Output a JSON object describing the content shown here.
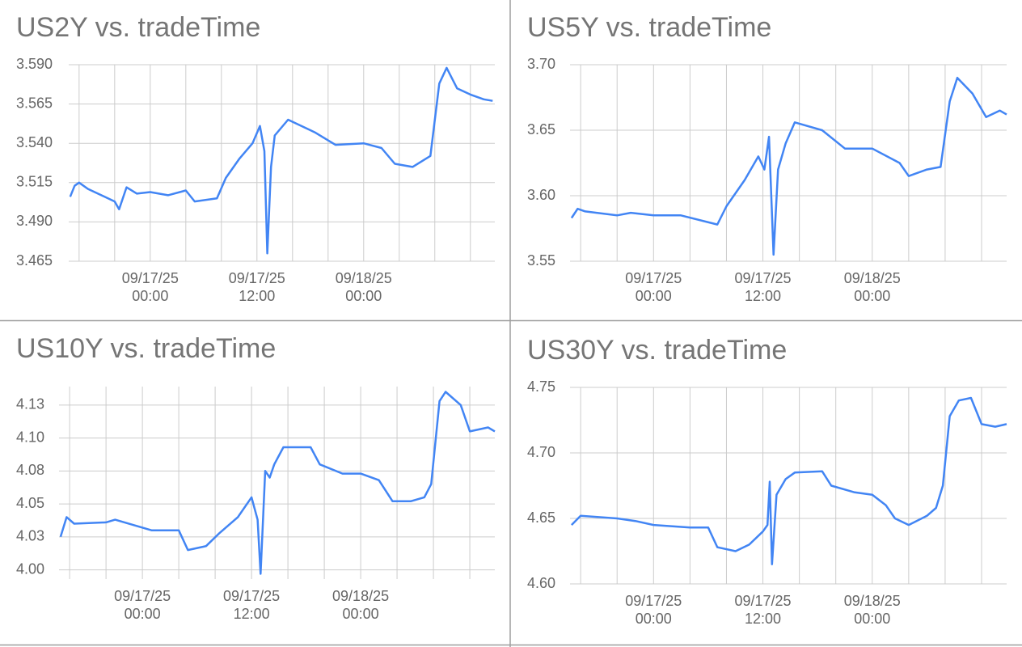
{
  "chart_data": [
    {
      "type": "line",
      "title": "US2Y vs. tradeTime",
      "color": "#4285f4",
      "grid": true,
      "xlim": [
        "09/16/25 14:50",
        "09/18/25 14:45"
      ],
      "xticks": [
        {
          "value": "09/16/25 16:00",
          "label": null
        },
        {
          "value": "09/16/25 20:00",
          "label": null
        },
        "09/17/25 00:00",
        {
          "value": "09/17/25 04:00",
          "label": null
        },
        {
          "value": "09/17/25 08:00",
          "label": null
        },
        "09/17/25 12:00",
        {
          "value": "09/17/25 16:00",
          "label": null
        },
        {
          "value": "09/17/25 20:00",
          "label": null
        },
        "09/18/25 00:00",
        {
          "value": "09/18/25 04:00",
          "label": null
        },
        {
          "value": "09/18/25 08:00",
          "label": null
        },
        {
          "value": "09/18/25 12:00",
          "label": null
        }
      ],
      "ylim": [
        3.465,
        3.59
      ],
      "yticks": [
        3.465,
        {
          "value": 3.49,
          "label": "3.490"
        },
        3.515,
        {
          "value": 3.54,
          "label": "3.540"
        },
        3.565,
        {
          "value": 3.59,
          "label": "3.590"
        }
      ],
      "x": [
        "09/16/25 15:00",
        "09/16/25 15:30",
        "09/16/25 16:00",
        "09/16/25 17:00",
        "09/16/25 20:00",
        "09/16/25 20:30",
        "09/16/25 21:20",
        "09/16/25 22:30",
        "09/17/25 00:00",
        "09/17/25 02:00",
        "09/17/25 04:00",
        "09/17/25 05:00",
        "09/17/25 07:30",
        "09/17/25 08:30",
        "09/17/25 10:00",
        "09/17/25 11:30",
        "09/17/25 12:20",
        "09/17/25 12:50",
        "09/17/25 13:10",
        "09/17/25 13:35",
        "09/17/25 14:00",
        "09/17/25 15:30",
        "09/17/25 18:30",
        "09/17/25 20:50",
        "09/18/25 00:00",
        "09/18/25 02:00",
        "09/18/25 03:30",
        "09/18/25 05:30",
        "09/18/25 07:30",
        "09/18/25 08:30",
        "09/18/25 09:20",
        "09/18/25 10:30",
        "09/18/25 12:00",
        "09/18/25 13:30",
        "09/18/25 14:30"
      ],
      "values": [
        3.506,
        3.513,
        3.515,
        3.511,
        3.503,
        3.498,
        3.512,
        3.508,
        3.509,
        3.507,
        3.51,
        3.503,
        3.505,
        3.518,
        3.53,
        3.54,
        3.551,
        3.535,
        3.47,
        3.525,
        3.545,
        3.555,
        3.547,
        3.539,
        3.54,
        3.537,
        3.527,
        3.525,
        3.532,
        3.578,
        3.588,
        3.575,
        3.571,
        3.568,
        3.567
      ]
    },
    {
      "type": "line",
      "title": "US5Y vs. tradeTime",
      "color": "#4285f4",
      "grid": true,
      "xlim": [
        "09/16/25 14:50",
        "09/18/25 14:45"
      ],
      "xticks": [
        {
          "value": "09/16/25 16:00",
          "label": null
        },
        {
          "value": "09/16/25 20:00",
          "label": null
        },
        "09/17/25 00:00",
        {
          "value": "09/17/25 04:00",
          "label": null
        },
        {
          "value": "09/17/25 08:00",
          "label": null
        },
        "09/17/25 12:00",
        {
          "value": "09/17/25 16:00",
          "label": null
        },
        {
          "value": "09/17/25 20:00",
          "label": null
        },
        "09/18/25 00:00",
        {
          "value": "09/18/25 04:00",
          "label": null
        },
        {
          "value": "09/18/25 08:00",
          "label": null
        },
        {
          "value": "09/18/25 12:00",
          "label": null
        }
      ],
      "ylim": [
        3.55,
        3.7
      ],
      "yticks": [
        3.55,
        {
          "value": 3.6,
          "label": "3.60"
        },
        3.65,
        {
          "value": 3.7,
          "label": "3.70"
        }
      ],
      "x": [
        "09/16/25 15:00",
        "09/16/25 15:40",
        "09/16/25 16:30",
        "09/16/25 20:00",
        "09/16/25 21:30",
        "09/17/25 00:00",
        "09/17/25 03:00",
        "09/17/25 07:00",
        "09/17/25 08:00",
        "09/17/25 10:00",
        "09/17/25 11:30",
        "09/17/25 12:10",
        "09/17/25 12:40",
        "09/17/25 13:10",
        "09/17/25 13:40",
        "09/17/25 14:30",
        "09/17/25 15:30",
        "09/17/25 18:30",
        "09/17/25 21:00",
        "09/18/25 00:00",
        "09/18/25 03:00",
        "09/18/25 04:00",
        "09/18/25 06:00",
        "09/18/25 07:30",
        "09/18/25 08:30",
        "09/18/25 09:20",
        "09/18/25 11:00",
        "09/18/25 12:30",
        "09/18/25 14:00",
        "09/18/25 14:45"
      ],
      "values": [
        3.583,
        3.59,
        3.588,
        3.585,
        3.587,
        3.585,
        3.585,
        3.578,
        3.592,
        3.612,
        3.63,
        3.62,
        3.645,
        3.555,
        3.62,
        3.64,
        3.656,
        3.65,
        3.636,
        3.636,
        3.625,
        3.615,
        3.62,
        3.622,
        3.672,
        3.69,
        3.678,
        3.66,
        3.665,
        3.662
      ]
    },
    {
      "type": "line",
      "title": "US10Y vs. tradeTime",
      "color": "#4285f4",
      "grid": true,
      "xlim": [
        "09/16/25 14:50",
        "09/18/25 14:45"
      ],
      "xticks": [
        {
          "value": "09/16/25 16:00",
          "label": null
        },
        {
          "value": "09/16/25 20:00",
          "label": null
        },
        "09/17/25 00:00",
        {
          "value": "09/17/25 04:00",
          "label": null
        },
        {
          "value": "09/17/25 08:00",
          "label": null
        },
        "09/17/25 12:00",
        {
          "value": "09/17/25 16:00",
          "label": null
        },
        {
          "value": "09/17/25 20:00",
          "label": null
        },
        "09/18/25 00:00",
        {
          "value": "09/18/25 04:00",
          "label": null
        },
        {
          "value": "09/18/25 08:00",
          "label": null
        },
        {
          "value": "09/18/25 12:00",
          "label": null
        }
      ],
      "ylim": [
        3.993,
        4.139
      ],
      "yticks": [
        {
          "value": 4.0,
          "label": "4.00"
        },
        {
          "value": 4.025,
          "label": "4.03"
        },
        4.05,
        {
          "value": 4.075,
          "label": "4.08"
        },
        {
          "value": 4.1,
          "label": "4.10"
        },
        {
          "value": 4.125,
          "label": "4.13"
        }
      ],
      "x": [
        "09/16/25 15:00",
        "09/16/25 15:40",
        "09/16/25 16:30",
        "09/16/25 20:00",
        "09/16/25 21:00",
        "09/17/25 01:00",
        "09/17/25 04:00",
        "09/17/25 05:00",
        "09/17/25 07:00",
        "09/17/25 08:30",
        "09/17/25 10:30",
        "09/17/25 12:00",
        "09/17/25 12:40",
        "09/17/25 13:00",
        "09/17/25 13:30",
        "09/17/25 14:00",
        "09/17/25 14:30",
        "09/17/25 15:30",
        "09/17/25 18:30",
        "09/17/25 19:30",
        "09/17/25 22:00",
        "09/18/25 00:00",
        "09/18/25 02:00",
        "09/18/25 03:30",
        "09/18/25 05:30",
        "09/18/25 07:00",
        "09/18/25 07:45",
        "09/18/25 08:40",
        "09/18/25 09:20",
        "09/18/25 11:00",
        "09/18/25 12:00",
        "09/18/25 14:00",
        "09/18/25 14:45"
      ],
      "values": [
        4.025,
        4.04,
        4.035,
        4.036,
        4.038,
        4.03,
        4.03,
        4.015,
        4.018,
        4.028,
        4.04,
        4.055,
        4.038,
        3.997,
        4.075,
        4.07,
        4.08,
        4.093,
        4.093,
        4.08,
        4.073,
        4.073,
        4.068,
        4.052,
        4.052,
        4.055,
        4.065,
        4.128,
        4.135,
        4.125,
        4.105,
        4.108,
        4.105
      ]
    },
    {
      "type": "line",
      "title": "US30Y vs. tradeTime",
      "color": "#4285f4",
      "grid": true,
      "xlim": [
        "09/16/25 14:50",
        "09/18/25 14:45"
      ],
      "xticks": [
        {
          "value": "09/16/25 16:00",
          "label": null
        },
        {
          "value": "09/16/25 20:00",
          "label": null
        },
        "09/17/25 00:00",
        {
          "value": "09/17/25 04:00",
          "label": null
        },
        {
          "value": "09/17/25 08:00",
          "label": null
        },
        "09/17/25 12:00",
        {
          "value": "09/17/25 16:00",
          "label": null
        },
        {
          "value": "09/17/25 20:00",
          "label": null
        },
        "09/18/25 00:00",
        {
          "value": "09/18/25 04:00",
          "label": null
        },
        {
          "value": "09/18/25 08:00",
          "label": null
        },
        {
          "value": "09/18/25 12:00",
          "label": null
        }
      ],
      "ylim": [
        4.6,
        4.75
      ],
      "yticks": [
        {
          "value": 4.6,
          "label": "4.60"
        },
        4.65,
        {
          "value": 4.7,
          "label": "4.70"
        },
        4.75
      ],
      "x": [
        "09/16/25 15:00",
        "09/16/25 16:00",
        "09/16/25 20:00",
        "09/16/25 22:00",
        "09/17/25 00:00",
        "09/17/25 04:00",
        "09/17/25 06:00",
        "09/17/25 07:00",
        "09/17/25 09:00",
        "09/17/25 10:30",
        "09/17/25 12:00",
        "09/17/25 12:30",
        "09/17/25 12:45",
        "09/17/25 13:00",
        "09/17/25 13:30",
        "09/17/25 14:30",
        "09/17/25 15:30",
        "09/17/25 18:30",
        "09/17/25 19:30",
        "09/17/25 22:00",
        "09/18/25 00:00",
        "09/18/25 01:30",
        "09/18/25 02:30",
        "09/18/25 04:00",
        "09/18/25 06:00",
        "09/18/25 07:00",
        "09/18/25 07:45",
        "09/18/25 08:30",
        "09/18/25 09:30",
        "09/18/25 10:50",
        "09/18/25 12:00",
        "09/18/25 13:30",
        "09/18/25 14:45"
      ],
      "values": [
        4.645,
        4.652,
        4.65,
        4.648,
        4.645,
        4.643,
        4.643,
        4.628,
        4.625,
        4.63,
        4.64,
        4.645,
        4.678,
        4.615,
        4.668,
        4.68,
        4.685,
        4.686,
        4.675,
        4.67,
        4.668,
        4.66,
        4.65,
        4.645,
        4.652,
        4.658,
        4.675,
        4.728,
        4.74,
        4.742,
        4.722,
        4.72,
        4.722
      ]
    }
  ]
}
